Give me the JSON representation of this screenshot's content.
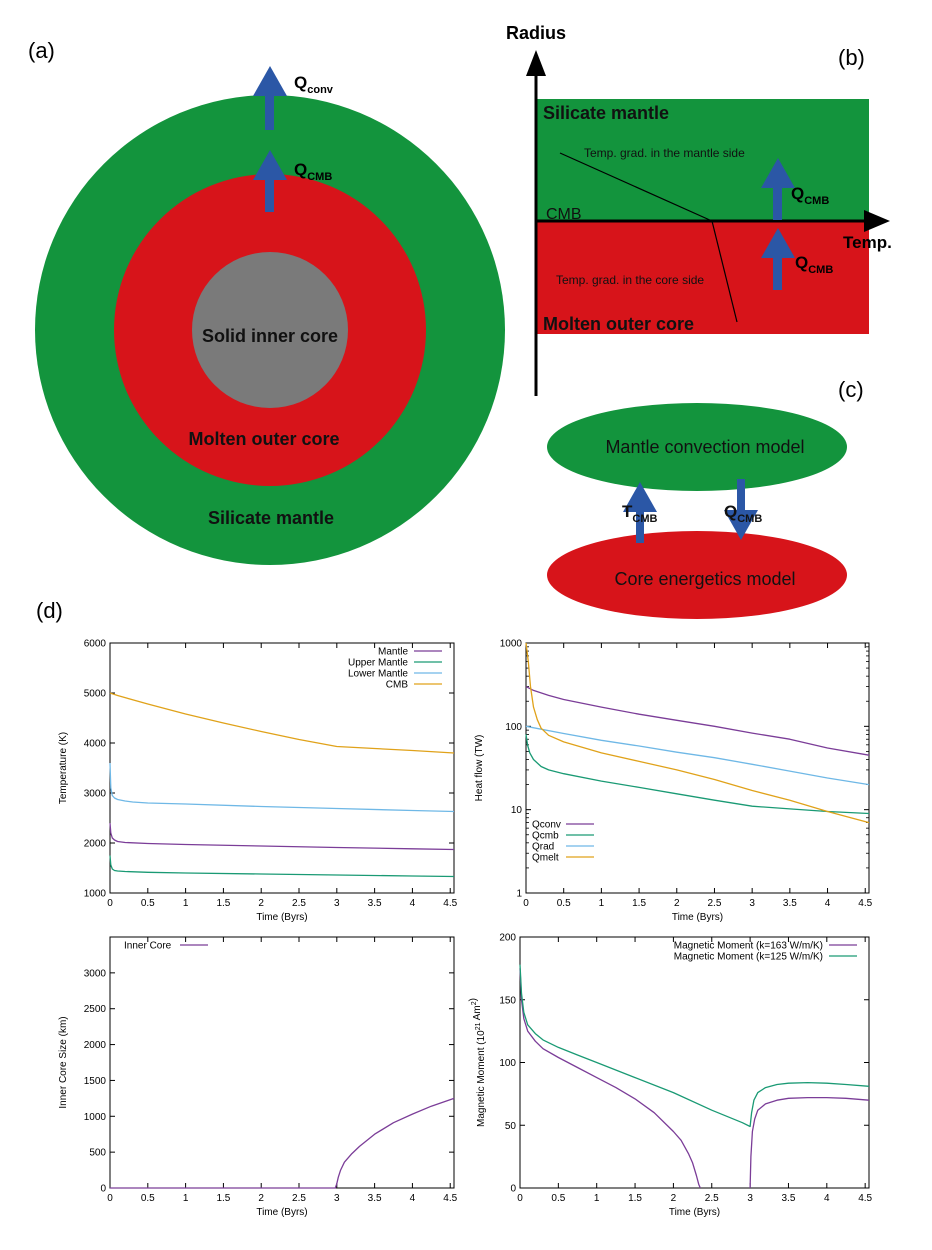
{
  "panel_a": {
    "label": "(a)",
    "q_conv": {
      "base": "Q",
      "sub": "conv"
    },
    "q_cmb": {
      "base": "Q",
      "sub": "CMB"
    },
    "inner": "Solid inner core",
    "outer": "Molten outer core",
    "mantle": "Silicate mantle",
    "colors": {
      "mantle": "#13943d",
      "core": "#d7141a",
      "inner": "#7a7a7a",
      "arrow": "#2b57a6"
    }
  },
  "panel_b": {
    "label": "(b)",
    "y_axis": "Radius",
    "x_axis": "Temp.",
    "mantle": "Silicate mantle",
    "core": "Molten outer core",
    "cmb": "CMB",
    "grad_mantle": "Temp. grad. in the mantle side",
    "grad_core": "Temp. grad. in the core side",
    "q_top": {
      "base": "Q",
      "sub": "CMB"
    },
    "q_bottom": {
      "base": "Q",
      "sub": "CMB"
    }
  },
  "panel_c": {
    "label": "(c)",
    "mantle_model": "Mantle convection model",
    "core_model": "Core energetics model",
    "t_cmb": {
      "base": "T",
      "sub": "CMB"
    },
    "q_cmb": {
      "base": "Q",
      "sub": "CMB"
    }
  },
  "panel_d": {
    "label": "(d)"
  },
  "chart_data": [
    {
      "type": "line",
      "title": "",
      "xlabel": "Time (Byrs)",
      "ylabel": "Temperature (K)",
      "xlim": [
        0,
        4.55
      ],
      "ylim": [
        1000,
        6000
      ],
      "yscale": "linear",
      "xticks": [
        "0",
        "0.5",
        "1",
        "1.5",
        "2",
        "2.5",
        "3",
        "3.5",
        "4",
        "4.5"
      ],
      "yticks": [
        "1000",
        "2000",
        "3000",
        "4000",
        "5000",
        "6000"
      ],
      "legend_position": "top-right",
      "series": [
        {
          "name": "Mantle",
          "color": "#7b3d98",
          "x": [
            0,
            0.01,
            0.03,
            0.06,
            0.1,
            0.2,
            0.5,
            1,
            2,
            3,
            4,
            4.55
          ],
          "y": [
            2400,
            2200,
            2100,
            2060,
            2030,
            2010,
            1990,
            1970,
            1940,
            1910,
            1885,
            1870
          ]
        },
        {
          "name": "Upper Mantle",
          "color": "#1a9a74",
          "x": [
            0,
            0.01,
            0.03,
            0.06,
            0.1,
            0.2,
            0.5,
            1,
            2,
            3,
            4,
            4.55
          ],
          "y": [
            1750,
            1560,
            1480,
            1450,
            1440,
            1430,
            1415,
            1400,
            1380,
            1360,
            1340,
            1330
          ]
        },
        {
          "name": "Lower Mantle",
          "color": "#6fb8e6",
          "x": [
            0,
            0.01,
            0.03,
            0.06,
            0.1,
            0.2,
            0.3,
            0.5,
            1,
            2,
            3,
            4,
            4.55
          ],
          "y": [
            3600,
            3100,
            2950,
            2900,
            2870,
            2840,
            2820,
            2800,
            2780,
            2730,
            2690,
            2650,
            2630
          ]
        },
        {
          "name": "CMB",
          "color": "#e0a21a",
          "x": [
            0,
            0.1,
            0.5,
            1,
            1.5,
            2,
            2.5,
            3,
            3.5,
            4,
            4.55
          ],
          "y": [
            5000,
            4950,
            4780,
            4580,
            4400,
            4230,
            4070,
            3930,
            3890,
            3850,
            3800
          ]
        }
      ]
    },
    {
      "type": "line",
      "title": "",
      "xlabel": "Time (Byrs)",
      "ylabel": "Heat flow (TW)",
      "xlim": [
        0,
        4.55
      ],
      "ylim": [
        1,
        1000
      ],
      "yscale": "log",
      "xticks": [
        "0",
        "0.5",
        "1",
        "1.5",
        "2",
        "2.5",
        "3",
        "3.5",
        "4",
        "4.5"
      ],
      "yticks": [
        "1",
        "10",
        "100",
        "1000"
      ],
      "legend_position": "bottom-left",
      "series": [
        {
          "name": "Qconv",
          "color": "#7b3d98",
          "x": [
            0,
            0.1,
            0.3,
            0.5,
            1,
            1.5,
            2,
            2.5,
            3,
            3.5,
            4,
            4.55
          ],
          "y": [
            300,
            270,
            235,
            210,
            170,
            140,
            118,
            100,
            83,
            70,
            55,
            45
          ]
        },
        {
          "name": "Qcmb",
          "color": "#1a9a74",
          "x": [
            0,
            0.02,
            0.05,
            0.1,
            0.2,
            0.3,
            0.5,
            1,
            1.5,
            2,
            2.5,
            3,
            3.5,
            4,
            4.55
          ],
          "y": [
            80,
            60,
            48,
            40,
            33,
            30,
            27,
            22,
            18.5,
            15.5,
            13,
            11,
            10.2,
            9.5,
            9
          ]
        },
        {
          "name": "Qrad",
          "color": "#6fb8e6",
          "x": [
            0,
            0.5,
            1,
            1.5,
            2,
            2.5,
            3,
            3.5,
            4,
            4.55
          ],
          "y": [
            100,
            82,
            68,
            58,
            49,
            42,
            35,
            29,
            24,
            20
          ]
        },
        {
          "name": "Qmelt",
          "color": "#e0a21a",
          "x": [
            0,
            0.03,
            0.06,
            0.1,
            0.15,
            0.2,
            0.3,
            0.5,
            1,
            1.5,
            2,
            2.5,
            3,
            3.5,
            4,
            4.55
          ],
          "y": [
            1000,
            600,
            300,
            170,
            120,
            95,
            78,
            65,
            48,
            38,
            30,
            23,
            17,
            13,
            9.5,
            7
          ]
        }
      ]
    },
    {
      "type": "line",
      "title": "",
      "xlabel": "Time (Byrs)",
      "ylabel": "Inner Core Size (km)",
      "xlim": [
        0,
        4.55
      ],
      "ylim": [
        0,
        3500
      ],
      "yscale": "linear",
      "xticks": [
        "0",
        "0.5",
        "1",
        "1.5",
        "2",
        "2.5",
        "3",
        "3.5",
        "4",
        "4.5"
      ],
      "yticks": [
        "0",
        "500",
        "1000",
        "1500",
        "2000",
        "2500",
        "3000"
      ],
      "legend_position": "top-left",
      "series": [
        {
          "name": "Inner Core",
          "color": "#7b3d98",
          "x": [
            0,
            2.98,
            3.0,
            3.02,
            3.05,
            3.1,
            3.2,
            3.3,
            3.5,
            3.75,
            4,
            4.25,
            4.55
          ],
          "y": [
            0,
            0,
            60,
            150,
            250,
            360,
            480,
            580,
            750,
            910,
            1030,
            1140,
            1250
          ]
        }
      ]
    },
    {
      "type": "line",
      "title": "",
      "xlabel": "Time (Byrs)",
      "ylabel": "Magnetic Moment (10^21 Am^2)",
      "xlim": [
        0,
        4.55
      ],
      "ylim": [
        0,
        200
      ],
      "yscale": "linear",
      "xticks": [
        "0",
        "0.5",
        "1",
        "1.5",
        "2",
        "2.5",
        "3",
        "3.5",
        "4",
        "4.5"
      ],
      "yticks": [
        "0",
        "50",
        "100",
        "150",
        "200"
      ],
      "legend_position": "top-right",
      "series": [
        {
          "name": "Magnetic Moment (k=163 W/m/K)",
          "color": "#7b3d98",
          "segments": [
            {
              "x": [
                0,
                0.02,
                0.05,
                0.1,
                0.2,
                0.3,
                0.5,
                0.75,
                1,
                1.25,
                1.5,
                1.75,
                2,
                2.1,
                2.2,
                2.25,
                2.3,
                2.33,
                2.35
              ],
              "y": [
                175,
                150,
                135,
                125,
                117,
                111,
                104,
                96,
                88,
                80,
                71,
                60,
                45,
                38,
                27,
                20,
                10,
                3,
                0
              ]
            },
            {
              "x": [
                3.0,
                3.01,
                3.03,
                3.06,
                3.1,
                3.2,
                3.35,
                3.5,
                3.75,
                4,
                4.25,
                4.55
              ],
              "y": [
                0,
                25,
                45,
                55,
                62,
                67,
                70,
                71.5,
                72,
                72,
                71.5,
                70
              ]
            }
          ]
        },
        {
          "name": "Magnetic Moment (k=125 W/m/K)",
          "color": "#1a9a74",
          "segments": [
            {
              "x": [
                0,
                0.02,
                0.05,
                0.1,
                0.2,
                0.3,
                0.5,
                0.75,
                1,
                1.5,
                2,
                2.5,
                2.9,
                3.0,
                3.02,
                3.05,
                3.1,
                3.2,
                3.35,
                3.5,
                3.75,
                4,
                4.25,
                4.55
              ],
              "y": [
                178,
                155,
                140,
                130,
                123,
                118,
                112,
                106,
                100,
                88,
                76,
                62,
                52,
                49,
                60,
                70,
                76,
                80,
                82.5,
                83.5,
                84,
                83.5,
                82.5,
                81
              ]
            }
          ]
        }
      ]
    }
  ]
}
